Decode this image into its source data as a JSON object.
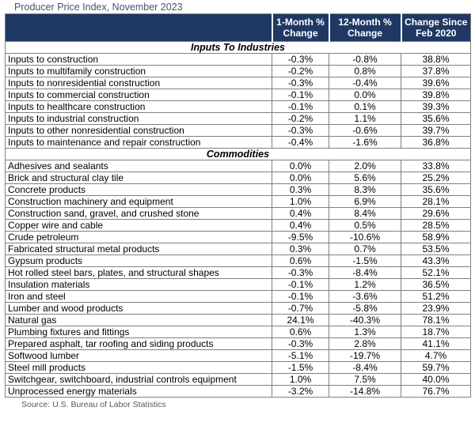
{
  "chart_data": {
    "type": "table",
    "title": "Producer Price Index, November 2023",
    "source": "Source: U.S. Bureau of Labor Statistics",
    "columns": [
      "",
      "1-Month % Change",
      "12-Month % Change",
      "Change Since Feb 2020"
    ],
    "sections": [
      {
        "name": "Inputs To Industries",
        "rows": [
          [
            "Inputs to construction",
            "-0.3%",
            "-0.8%",
            "38.8%"
          ],
          [
            "Inputs to multifamily construction",
            "-0.2%",
            "0.8%",
            "37.8%"
          ],
          [
            "Inputs to nonresidential construction",
            "-0.3%",
            "-0.4%",
            "39.6%"
          ],
          [
            "Inputs to commercial construction",
            "-0.1%",
            "0.0%",
            "39.8%"
          ],
          [
            "Inputs to healthcare construction",
            "-0.1%",
            "0.1%",
            "39.3%"
          ],
          [
            "Inputs to industrial construction",
            "-0.2%",
            "1.1%",
            "35.6%"
          ],
          [
            "Inputs to other nonresidential construction",
            "-0.3%",
            "-0.6%",
            "39.7%"
          ],
          [
            "Inputs to maintenance and repair construction",
            "-0.4%",
            "-1.6%",
            "36.8%"
          ]
        ]
      },
      {
        "name": "Commodities",
        "rows": [
          [
            "Adhesives and sealants",
            "0.0%",
            "2.0%",
            "33.8%"
          ],
          [
            "Brick and structural clay tile",
            "0.0%",
            "5.6%",
            "25.2%"
          ],
          [
            "Concrete products",
            "0.3%",
            "8.3%",
            "35.6%"
          ],
          [
            "Construction machinery and equipment",
            "1.0%",
            "6.9%",
            "28.1%"
          ],
          [
            "Construction sand, gravel, and crushed stone",
            "0.4%",
            "8.4%",
            "29.6%"
          ],
          [
            "Copper wire and cable",
            "0.4%",
            "0.5%",
            "28.5%"
          ],
          [
            "Crude petroleum",
            "-9.5%",
            "-10.6%",
            "58.9%"
          ],
          [
            "Fabricated structural metal products",
            "0.3%",
            "0.7%",
            "53.5%"
          ],
          [
            "Gypsum products",
            "0.6%",
            "-1.5%",
            "43.3%"
          ],
          [
            "Hot rolled steel bars, plates, and structural shapes",
            "-0.3%",
            "-8.4%",
            "52.1%"
          ],
          [
            "Insulation materials",
            "-0.1%",
            "1.2%",
            "36.5%"
          ],
          [
            "Iron and steel",
            "-0.1%",
            "-3.6%",
            "51.2%"
          ],
          [
            "Lumber and wood products",
            "-0.7%",
            "-5.8%",
            "23.9%"
          ],
          [
            "Natural gas",
            "24.1%",
            "-40.3%",
            "78.1%"
          ],
          [
            "Plumbing fixtures and fittings",
            "0.6%",
            "1.3%",
            "18.7%"
          ],
          [
            "Prepared asphalt, tar roofing and siding products",
            "-0.3%",
            "2.8%",
            "41.1%"
          ],
          [
            "Softwood lumber",
            "-5.1%",
            "-19.7%",
            "4.7%"
          ],
          [
            "Steel mill products",
            "-1.5%",
            "-8.4%",
            "59.7%"
          ],
          [
            "Switchgear, switchboard, industrial controls equipment",
            "1.0%",
            "7.5%",
            "40.0%"
          ],
          [
            "Unprocessed energy materials",
            "-3.2%",
            "-14.8%",
            "76.7%"
          ]
        ]
      }
    ]
  },
  "colors": {
    "header_bg": "#1f3864",
    "header_text": "#ffffff",
    "title_text": "#44546a",
    "body_text": "#000000",
    "grid_line": "#808080",
    "source_text": "#595959"
  }
}
